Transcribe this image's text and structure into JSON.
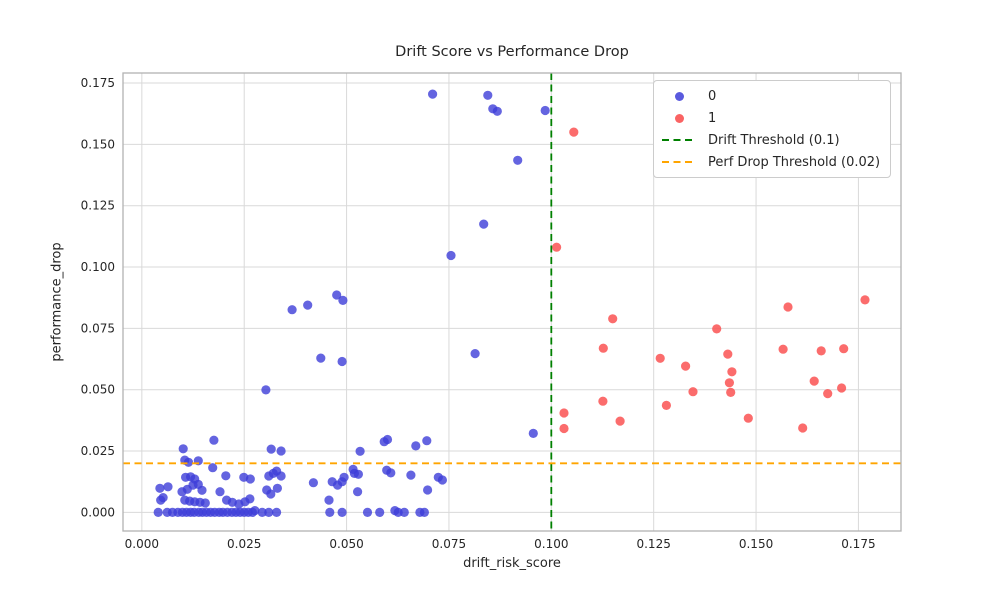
{
  "chart_data": {
    "type": "scatter",
    "title": "Drift Score vs Performance Drop",
    "xlabel": "drift_risk_score",
    "ylabel": "performance_drop",
    "xlim": [
      -0.0046,
      0.1854
    ],
    "ylim": [
      -0.0076,
      0.1791
    ],
    "x_ticks": [
      0.0,
      0.025,
      0.05,
      0.075,
      0.1,
      0.125,
      0.15,
      0.175
    ],
    "y_ticks": [
      0.0,
      0.025,
      0.05,
      0.075,
      0.1,
      0.125,
      0.15,
      0.175
    ],
    "x_tick_labels": [
      "0.000",
      "0.025",
      "0.050",
      "0.075",
      "0.100",
      "0.125",
      "0.150",
      "0.175"
    ],
    "y_tick_labels": [
      "0.000",
      "0.025",
      "0.050",
      "0.075",
      "0.100",
      "0.125",
      "0.150",
      "0.175"
    ],
    "grid": true,
    "grid_color": "#d9d9d9",
    "spine_color": "#b2b2b2",
    "legend_position": "upper right",
    "series": [
      {
        "name": "0",
        "color": "#3d3dd8",
        "fill_opacity": 0.8,
        "points": [
          [
            0.071,
            0.1705
          ],
          [
            0.0845,
            0.17
          ],
          [
            0.0857,
            0.1645
          ],
          [
            0.0868,
            0.1635
          ],
          [
            0.0985,
            0.1638
          ],
          [
            0.0918,
            0.1435
          ],
          [
            0.0835,
            0.1175
          ],
          [
            0.0755,
            0.1047
          ],
          [
            0.0476,
            0.0886
          ],
          [
            0.0491,
            0.0864
          ],
          [
            0.0405,
            0.0845
          ],
          [
            0.0367,
            0.0826
          ],
          [
            0.0814,
            0.0647
          ],
          [
            0.0437,
            0.0629
          ],
          [
            0.0489,
            0.0615
          ],
          [
            0.0303,
            0.0499
          ],
          [
            0.0956,
            0.0322
          ],
          [
            0.0176,
            0.0294
          ],
          [
            0.06,
            0.0297
          ],
          [
            0.0592,
            0.0288
          ],
          [
            0.0696,
            0.0292
          ],
          [
            0.0669,
            0.0271
          ],
          [
            0.0316,
            0.0258
          ],
          [
            0.034,
            0.025
          ],
          [
            0.0533,
            0.0249
          ],
          [
            0.0101,
            0.0259
          ],
          [
            0.0105,
            0.0213
          ],
          [
            0.0114,
            0.0204
          ],
          [
            0.0138,
            0.021
          ],
          [
            0.0173,
            0.0182
          ],
          [
            0.0516,
            0.0175
          ],
          [
            0.0519,
            0.0159
          ],
          [
            0.0529,
            0.0155
          ],
          [
            0.0598,
            0.0172
          ],
          [
            0.0608,
            0.0161
          ],
          [
            0.0657,
            0.0152
          ],
          [
            0.0321,
            0.0159
          ],
          [
            0.0329,
            0.0168
          ],
          [
            0.034,
            0.0148
          ],
          [
            0.031,
            0.0148
          ],
          [
            0.0724,
            0.0143
          ],
          [
            0.0734,
            0.0132
          ],
          [
            0.0107,
            0.0143
          ],
          [
            0.0119,
            0.0145
          ],
          [
            0.0129,
            0.0136
          ],
          [
            0.0205,
            0.0149
          ],
          [
            0.0249,
            0.0143
          ],
          [
            0.0265,
            0.0136
          ],
          [
            0.0419,
            0.0121
          ],
          [
            0.0465,
            0.0125
          ],
          [
            0.0478,
            0.0111
          ],
          [
            0.0489,
            0.0125
          ],
          [
            0.0494,
            0.0143
          ],
          [
            0.0044,
            0.0098
          ],
          [
            0.0064,
            0.0104
          ],
          [
            0.0098,
            0.0084
          ],
          [
            0.0111,
            0.0094
          ],
          [
            0.0125,
            0.0111
          ],
          [
            0.0138,
            0.0114
          ],
          [
            0.0147,
            0.009
          ],
          [
            0.0191,
            0.0084
          ],
          [
            0.0305,
            0.0091
          ],
          [
            0.0315,
            0.0075
          ],
          [
            0.0331,
            0.0098
          ],
          [
            0.0527,
            0.0084
          ],
          [
            0.0698,
            0.0091
          ],
          [
            0.0052,
            0.006
          ],
          [
            0.0105,
            0.005
          ],
          [
            0.0117,
            0.0046
          ],
          [
            0.0129,
            0.0043
          ],
          [
            0.0142,
            0.0041
          ],
          [
            0.0155,
            0.0038
          ],
          [
            0.0207,
            0.005
          ],
          [
            0.0221,
            0.0041
          ],
          [
            0.0237,
            0.0034
          ],
          [
            0.0252,
            0.0043
          ],
          [
            0.0264,
            0.0055
          ],
          [
            0.0457,
            0.005
          ],
          [
            0.0046,
            0.005
          ],
          [
            0.0276,
            0.0007
          ],
          [
            0.0618,
            0.0007
          ],
          [
            0.004,
            0.0
          ],
          [
            0.0062,
            0.0
          ],
          [
            0.0075,
            0.0
          ],
          [
            0.0088,
            0.0
          ],
          [
            0.0099,
            0.0
          ],
          [
            0.0109,
            0.0
          ],
          [
            0.0119,
            0.0
          ],
          [
            0.0128,
            0.0
          ],
          [
            0.0139,
            0.0
          ],
          [
            0.0148,
            0.0
          ],
          [
            0.0158,
            0.0
          ],
          [
            0.0168,
            0.0
          ],
          [
            0.0178,
            0.0
          ],
          [
            0.0189,
            0.0
          ],
          [
            0.0198,
            0.0
          ],
          [
            0.0209,
            0.0
          ],
          [
            0.022,
            0.0
          ],
          [
            0.023,
            0.0
          ],
          [
            0.024,
            0.0
          ],
          [
            0.025,
            0.0
          ],
          [
            0.026,
            0.0
          ],
          [
            0.027,
            0.0
          ],
          [
            0.0294,
            0.0
          ],
          [
            0.031,
            0.0
          ],
          [
            0.0329,
            0.0
          ],
          [
            0.0459,
            0.0
          ],
          [
            0.0489,
            0.0
          ],
          [
            0.0551,
            0.0
          ],
          [
            0.0581,
            0.0
          ],
          [
            0.0626,
            0.0
          ],
          [
            0.0641,
            0.0
          ],
          [
            0.0679,
            0.0
          ],
          [
            0.069,
            0.0
          ]
        ]
      },
      {
        "name": "1",
        "color": "#fa5252",
        "fill_opacity": 0.85,
        "points": [
          [
            0.1055,
            0.155
          ],
          [
            0.1013,
            0.1081
          ],
          [
            0.115,
            0.0789
          ],
          [
            0.1404,
            0.0748
          ],
          [
            0.1127,
            0.0669
          ],
          [
            0.1266,
            0.0628
          ],
          [
            0.1431,
            0.0645
          ],
          [
            0.1328,
            0.0596
          ],
          [
            0.1441,
            0.0573
          ],
          [
            0.1435,
            0.0528
          ],
          [
            0.1438,
            0.0489
          ],
          [
            0.1346,
            0.0492
          ],
          [
            0.1126,
            0.0453
          ],
          [
            0.1281,
            0.0436
          ],
          [
            0.1031,
            0.0405
          ],
          [
            0.1168,
            0.0372
          ],
          [
            0.1481,
            0.0384
          ],
          [
            0.1031,
            0.0342
          ],
          [
            0.1766,
            0.0866
          ],
          [
            0.1578,
            0.0837
          ],
          [
            0.1566,
            0.0665
          ],
          [
            0.1659,
            0.0658
          ],
          [
            0.1714,
            0.0667
          ],
          [
            0.1642,
            0.0535
          ],
          [
            0.1709,
            0.0507
          ],
          [
            0.1675,
            0.0484
          ],
          [
            0.1614,
            0.0344
          ]
        ]
      }
    ],
    "thresholds": [
      {
        "label": "Drift Threshold (0.1)",
        "orientation": "vertical",
        "value": 0.1,
        "color": "#008000"
      },
      {
        "label": "Perf Drop Threshold (0.02)",
        "orientation": "horizontal",
        "value": 0.02,
        "color": "#ffa500"
      }
    ]
  },
  "legend": {
    "item0_label": "0",
    "item1_label": "1",
    "item2_label": "Drift Threshold (0.1)",
    "item3_label": "Perf Drop Threshold (0.02)"
  }
}
